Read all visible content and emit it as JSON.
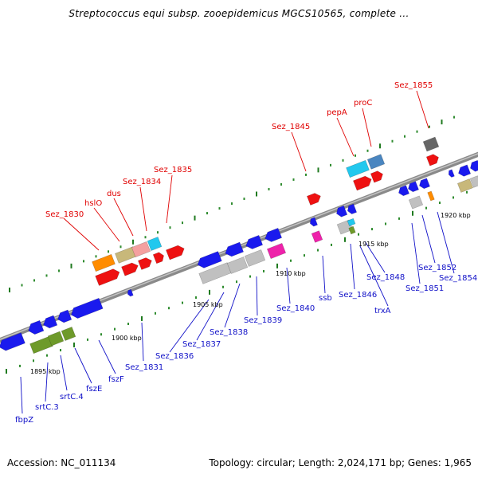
{
  "title": "Streptococcus equi subsp. zooepidemicus MGCS10565, complete ...",
  "footer": {
    "accession": "Accession: NC_011134",
    "stats": "Topology: circular; Length: 2,024,171 bp; Genes: 1,965"
  },
  "colors": {
    "backbone": "#888888",
    "label_top": "#e00000",
    "label_bottom": "#1010c8",
    "tick": "#2e7d2e"
  },
  "ticks": [
    "1895 kbp",
    "1900 kbp",
    "1905 kbp",
    "1910 kbp",
    "1915 kbp",
    "1920 kbp"
  ],
  "labels_top": [
    "Sez_1830",
    "hslO",
    "dus",
    "Sez_1834",
    "Sez_1835",
    "Sez_1845",
    "pepA",
    "proC",
    "Sez_1855"
  ],
  "labels_bottom": [
    "fbpZ",
    "srtC.3",
    "srtC.4",
    "fszE",
    "fszF",
    "Sez_1831",
    "Sez_1836",
    "Sez_1837",
    "Sez_1838",
    "Sez_1839",
    "Sez_1840",
    "ssb",
    "Sez_1846",
    "trxA",
    "Sez_1848",
    "Sez_1851",
    "Sez_1852",
    "Sez_1854"
  ]
}
